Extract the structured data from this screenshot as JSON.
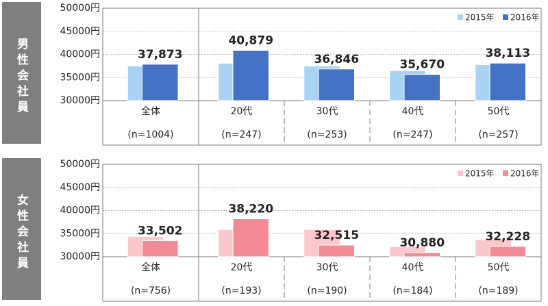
{
  "chart_data": [
    {
      "type": "bar",
      "side_label": "男性会社員",
      "categories": [
        "全体",
        "20代",
        "30代",
        "40代",
        "50代"
      ],
      "sample_sizes": [
        "(n=1004)",
        "(n=247)",
        "(n=253)",
        "(n=247)",
        "(n=257)"
      ],
      "series": [
        {
          "name": "2015年",
          "color": "#a9d3f5",
          "values": [
            37500,
            38100,
            37500,
            36500,
            37800
          ]
        },
        {
          "name": "2016年",
          "color": "#4472c4",
          "values": [
            37873,
            40879,
            36846,
            35670,
            38113
          ],
          "value_labels": [
            "37,873",
            "40,879",
            "36,846",
            "35,670",
            "38,113"
          ]
        }
      ],
      "ylim": [
        30000,
        50000
      ],
      "yticks": [
        {
          "value": 30000,
          "label": "30000円"
        },
        {
          "value": 35000,
          "label": "35000円"
        },
        {
          "value": 40000,
          "label": "40000円"
        },
        {
          "value": 45000,
          "label": "45000円"
        },
        {
          "value": 50000,
          "label": "50000円"
        }
      ],
      "grid": true,
      "legend": "top-right"
    },
    {
      "type": "bar",
      "side_label": "女性会社員",
      "categories": [
        "全体",
        "20代",
        "30代",
        "40代",
        "50代"
      ],
      "sample_sizes": [
        "(n=756)",
        "(n=193)",
        "(n=190)",
        "(n=184)",
        "(n=189)"
      ],
      "series": [
        {
          "name": "2015年",
          "color": "#fcc8ce",
          "values": [
            34400,
            35900,
            35900,
            32200,
            33700
          ]
        },
        {
          "name": "2016年",
          "color": "#f28b95",
          "values": [
            33502,
            38220,
            32515,
            30880,
            32228
          ],
          "value_labels": [
            "33,502",
            "38,220",
            "32,515",
            "30,880",
            "32,228"
          ]
        }
      ],
      "ylim": [
        30000,
        50000
      ],
      "yticks": [
        {
          "value": 30000,
          "label": "30000円"
        },
        {
          "value": 35000,
          "label": "35000円"
        },
        {
          "value": 40000,
          "label": "40000円"
        },
        {
          "value": 45000,
          "label": "45000円"
        },
        {
          "value": 50000,
          "label": "50000円"
        }
      ],
      "grid": true,
      "legend": "top-right"
    }
  ]
}
